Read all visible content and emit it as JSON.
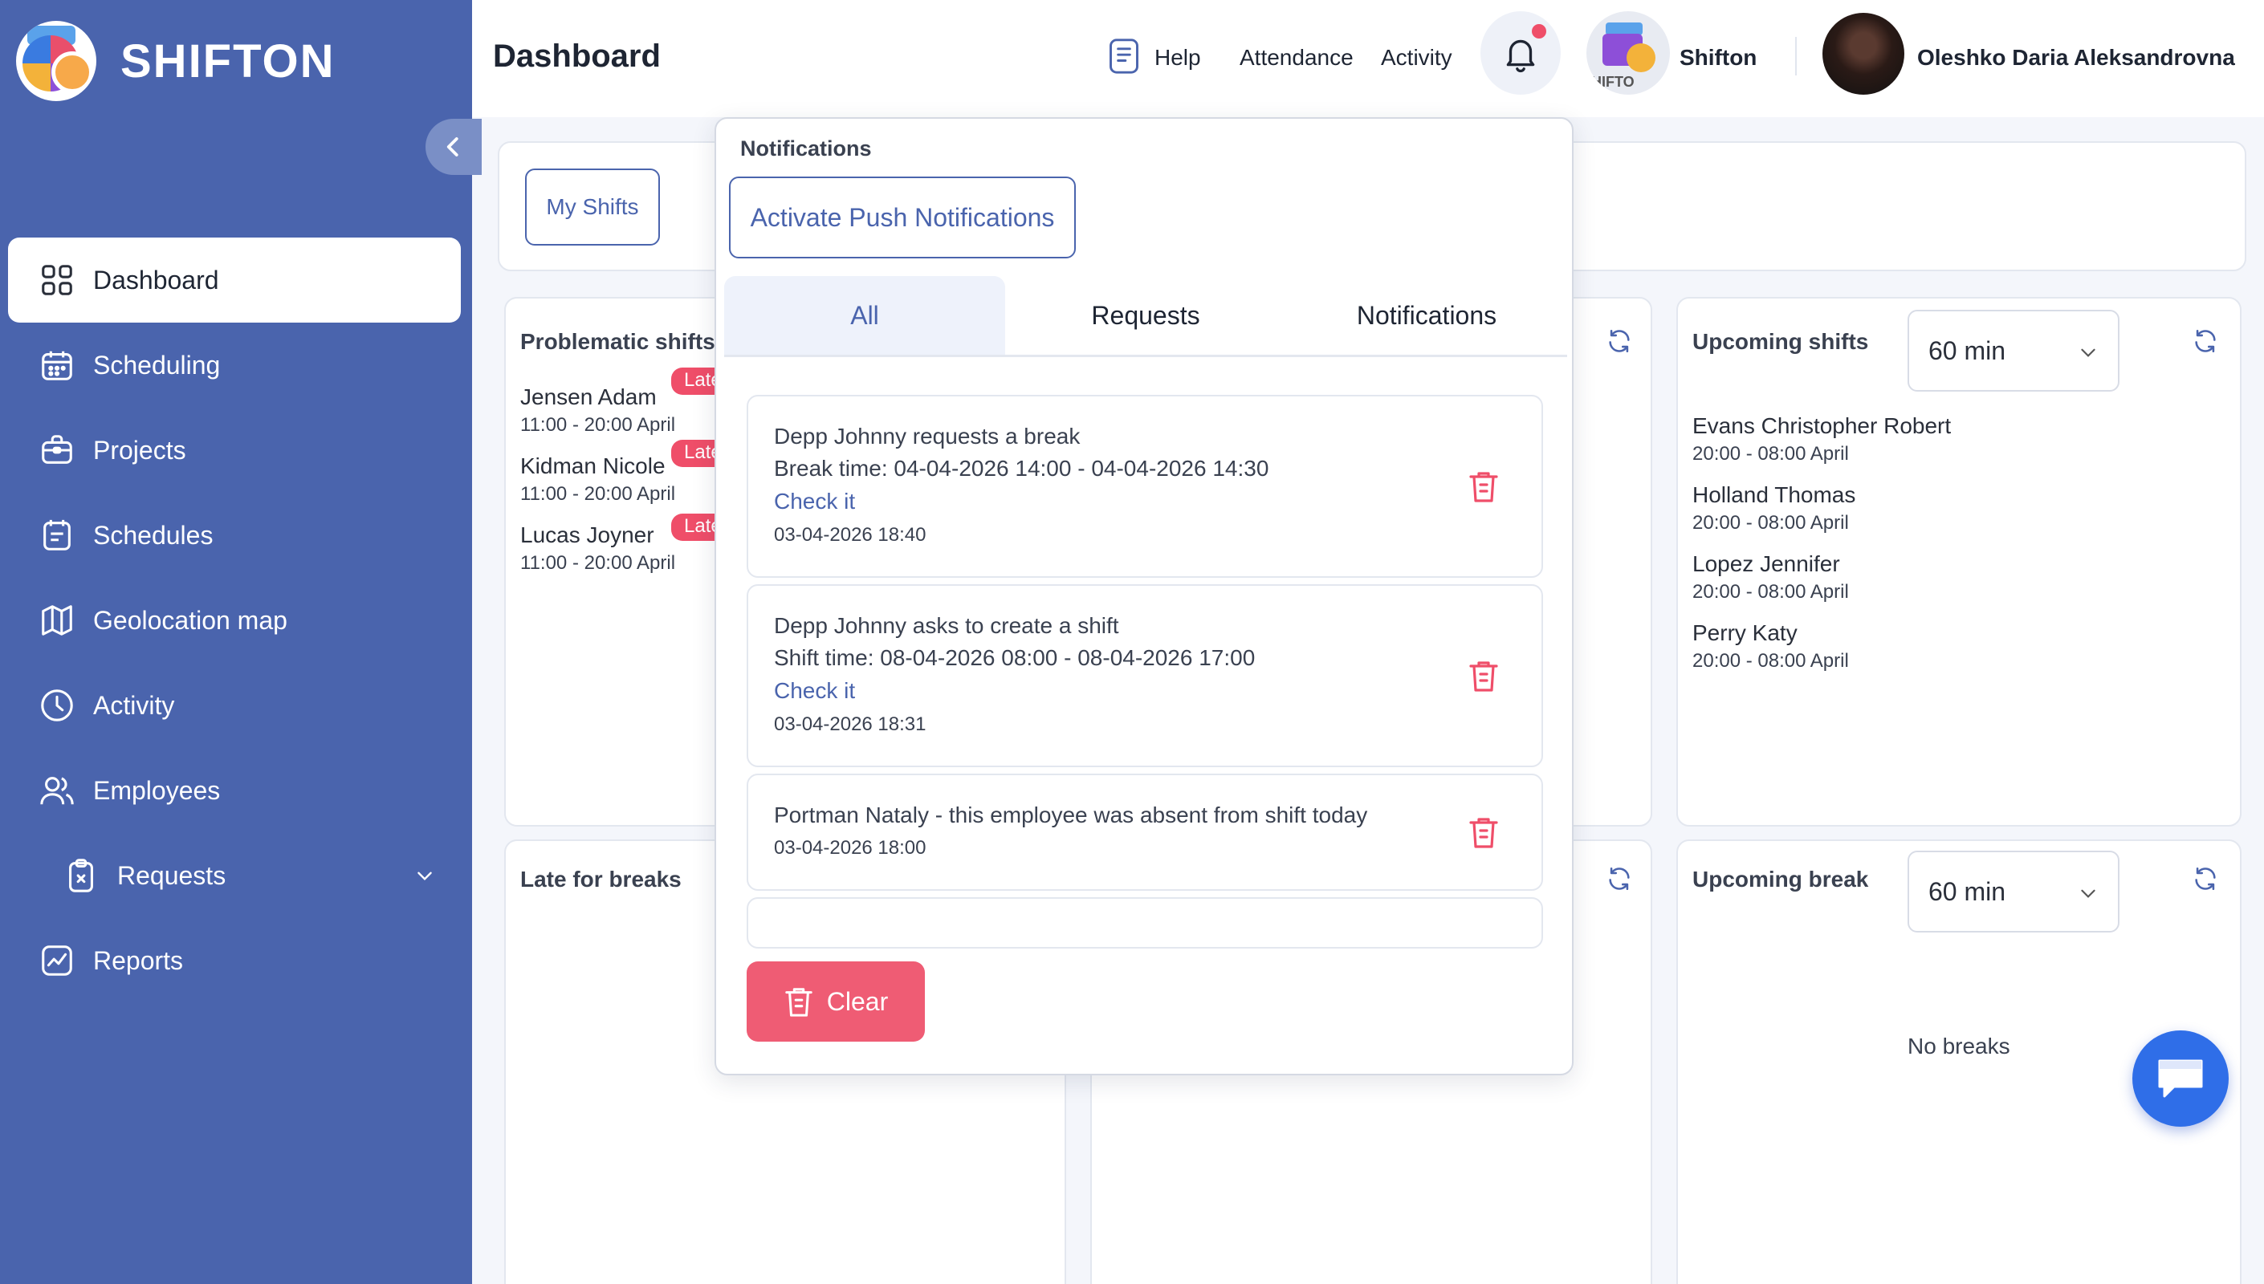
{
  "app": {
    "brand": "SHIFTON",
    "accent": "#4a64ad",
    "danger": "#ef4e69"
  },
  "sidebar": {
    "items": [
      {
        "label": "Dashboard",
        "icon": "grid-icon",
        "active": true
      },
      {
        "label": "Scheduling",
        "icon": "calendar-icon"
      },
      {
        "label": "Projects",
        "icon": "briefcase-icon"
      },
      {
        "label": "Schedules",
        "icon": "schedule-icon"
      },
      {
        "label": "Geolocation map",
        "icon": "map-icon"
      },
      {
        "label": "Activity",
        "icon": "clock-icon"
      },
      {
        "label": "Employees",
        "icon": "users-icon"
      },
      {
        "label": "Requests",
        "icon": "clipboard-x-icon"
      },
      {
        "label": "Reports",
        "icon": "chart-icon"
      }
    ]
  },
  "header": {
    "title": "Dashboard",
    "links": {
      "help": "Help",
      "attendance": "Attendance",
      "activity": "Activity"
    },
    "company": "Shifton",
    "company_logo_text": "HIFTO",
    "user": "Oleshko Daria Aleksandrovna"
  },
  "filters": {
    "my_shifts": "My Shifts"
  },
  "problematic": {
    "title": "Problematic shifts",
    "badge": "Late",
    "items": [
      {
        "name": "Jensen Adam",
        "time": "11:00 - 20:00 April"
      },
      {
        "name": "Kidman Nicole",
        "time": "11:00 - 20:00 April"
      },
      {
        "name": "Lucas Joyner",
        "time": "11:00 - 20:00 April"
      }
    ]
  },
  "upcoming_shifts": {
    "title": "Upcoming shifts",
    "select": "60 min",
    "items": [
      {
        "name": "Evans Christopher Robert",
        "time": "20:00 - 08:00 April"
      },
      {
        "name": "Holland Thomas",
        "time": "20:00 - 08:00 April"
      },
      {
        "name": "Lopez Jennifer",
        "time": "20:00 - 08:00 April"
      },
      {
        "name": "Perry Katy",
        "time": "20:00 - 08:00 April"
      }
    ]
  },
  "late_breaks": {
    "title": "Late for breaks"
  },
  "upcoming_break": {
    "title": "Upcoming break",
    "select": "60 min",
    "empty": "No breaks"
  },
  "notifications": {
    "title": "Notifications",
    "push_button": "Activate Push Notifications",
    "tabs": [
      "All",
      "Requests",
      "Notifications"
    ],
    "items": [
      {
        "line1": "Depp Johnny requests a break",
        "line2": "Break time: 04-04-2026 14:00 - 04-04-2026 14:30",
        "link": "Check it",
        "date": "03-04-2026 18:40"
      },
      {
        "line1": "Depp Johnny asks to create a shift",
        "line2": "Shift time: 08-04-2026 08:00 - 08-04-2026 17:00",
        "link": "Check it",
        "date": "03-04-2026 18:31"
      },
      {
        "line1": "Portman Nataly - this employee was absent from shift today",
        "date": "03-04-2026 18:00"
      }
    ],
    "clear": "Clear"
  }
}
